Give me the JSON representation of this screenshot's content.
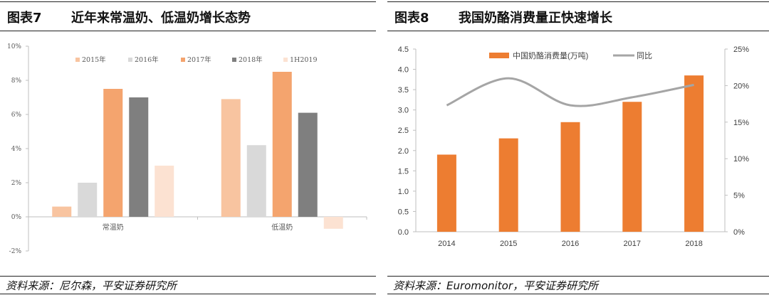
{
  "left": {
    "fig_label": "图表7",
    "title": "近年来常温奶、低温奶增长态势",
    "source": "资料来源：尼尔森，平安证券研究所"
  },
  "right": {
    "fig_label": "图表8",
    "title": "我国奶酪消费量正快速增长",
    "source": "资料来源：Euromonitor，平安证券研究所"
  },
  "chart_data": [
    {
      "type": "bar",
      "title": "近年来常温奶、低温奶增长态势",
      "categories": [
        "常温奶",
        "低温奶"
      ],
      "series": [
        {
          "name": "2015年",
          "color": "#F8C4A0",
          "values": [
            0.6,
            6.9
          ]
        },
        {
          "name": "2016年",
          "color": "#D9D9D9",
          "values": [
            2.0,
            4.2
          ]
        },
        {
          "name": "2017年",
          "color": "#F4A46E",
          "values": [
            7.5,
            8.5
          ]
        },
        {
          "name": "2018年",
          "color": "#7F7F7F",
          "values": [
            7.0,
            6.1
          ]
        },
        {
          "name": "1H2019",
          "color": "#FCE2D2",
          "values": [
            3.0,
            -0.7
          ]
        }
      ],
      "ylim": [
        -2,
        10
      ],
      "yticks": [
        "-2%",
        "0%",
        "2%",
        "4%",
        "6%",
        "8%",
        "10%"
      ],
      "legend": "top",
      "grid": false
    },
    {
      "type": "bar",
      "title": "我国奶酪消费量正快速增长",
      "categories": [
        "2014",
        "2015",
        "2016",
        "2017",
        "2018"
      ],
      "series": [
        {
          "name": "中国奶酪消费量(万吨)",
          "color": "#ED7D31",
          "axis": "left",
          "values": [
            1.9,
            2.3,
            2.7,
            3.2,
            3.85
          ]
        },
        {
          "name": "同比",
          "color": "#A5A5A5",
          "axis": "right",
          "type": "line",
          "values": [
            17.3,
            21.0,
            17.3,
            18.4,
            20.1
          ]
        }
      ],
      "ylim": [
        0,
        4.5
      ],
      "yticks": [
        "0.0",
        "0.5",
        "1.0",
        "1.5",
        "2.0",
        "2.5",
        "3.0",
        "3.5",
        "4.0",
        "4.5"
      ],
      "y2lim": [
        0,
        25
      ],
      "y2ticks": [
        "0%",
        "5%",
        "10%",
        "15%",
        "20%",
        "25%"
      ],
      "legend": "top",
      "grid": false
    }
  ]
}
